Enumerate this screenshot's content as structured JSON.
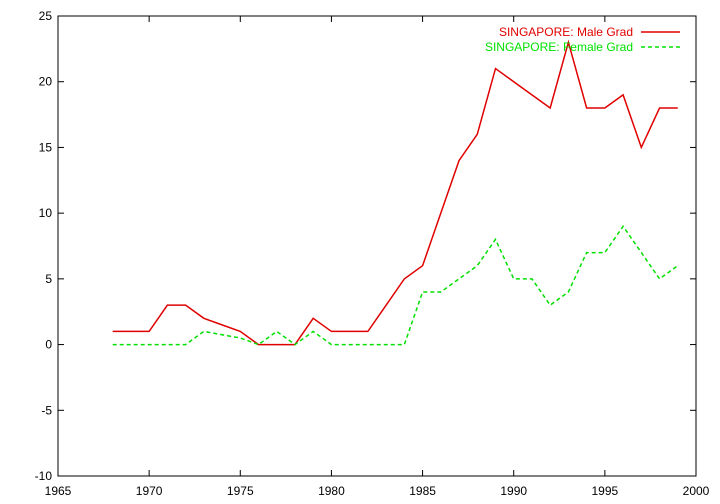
{
  "chart_data": {
    "type": "line",
    "title": "",
    "xlabel": "",
    "ylabel": "",
    "xlim": [
      1965,
      2000
    ],
    "ylim": [
      -10,
      25
    ],
    "x_ticks": [
      1965,
      1970,
      1975,
      1980,
      1985,
      1990,
      1995,
      2000
    ],
    "y_ticks": [
      -10,
      -5,
      0,
      5,
      10,
      15,
      20,
      25
    ],
    "grid": false,
    "legend_position": "top-right",
    "series": [
      {
        "name": "SINGAPORE: Male Grad",
        "color": "#e00000",
        "dash": "solid",
        "x": [
          1968,
          1969,
          1970,
          1971,
          1972,
          1973,
          1974,
          1975,
          1976,
          1977,
          1978,
          1979,
          1980,
          1981,
          1982,
          1983,
          1984,
          1985,
          1986,
          1987,
          1988,
          1989,
          1990,
          1991,
          1992,
          1993,
          1994,
          1995,
          1996,
          1997,
          1998,
          1999
        ],
        "y": [
          1,
          1,
          1,
          3,
          3,
          2,
          1.5,
          1,
          0,
          0,
          0,
          2,
          1,
          1,
          1,
          3,
          5,
          6,
          10,
          14,
          16,
          21,
          20,
          19,
          18,
          23,
          18,
          18,
          19,
          15,
          18,
          18
        ]
      },
      {
        "name": "SINGAPORE: Female Grad",
        "color": "#00e000",
        "dash": "dashed",
        "x": [
          1968,
          1969,
          1970,
          1971,
          1972,
          1973,
          1974,
          1975,
          1976,
          1977,
          1978,
          1979,
          1980,
          1981,
          1982,
          1983,
          1984,
          1985,
          1986,
          1987,
          1988,
          1989,
          1990,
          1991,
          1992,
          1993,
          1994,
          1995,
          1996,
          1997,
          1998,
          1999
        ],
        "y": [
          0,
          0,
          0,
          0,
          0,
          1,
          0.75,
          0.5,
          0,
          1,
          0,
          1,
          0,
          0,
          0,
          0,
          0,
          4,
          4,
          5,
          6,
          8,
          5,
          5,
          3,
          4,
          7,
          7,
          9,
          7,
          5,
          6
        ]
      }
    ]
  }
}
